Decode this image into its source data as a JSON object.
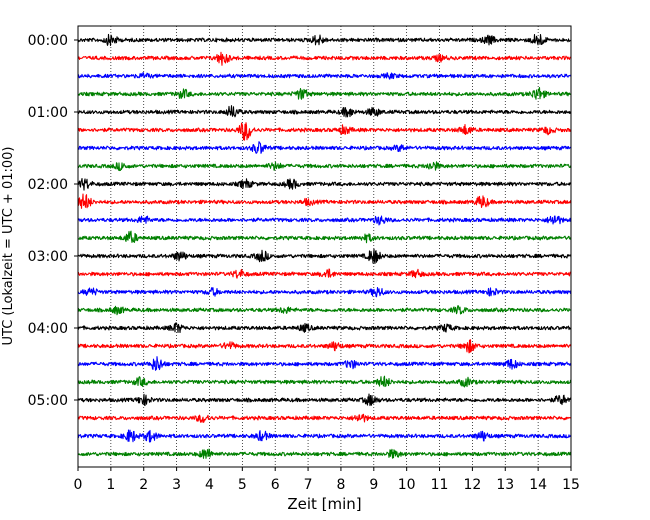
{
  "chart_data": {
    "type": "line",
    "title": "",
    "xlabel": "Zeit  [min]",
    "ylabel": "UTC (Lokalzeit = UTC + 01:00)",
    "xlim": [
      0,
      15
    ],
    "x_ticks": [
      "0",
      "1",
      "2",
      "3",
      "4",
      "5",
      "6",
      "7",
      "8",
      "9",
      "10",
      "11",
      "12",
      "13",
      "14",
      "15"
    ],
    "y_ticks": [
      "00:00",
      "01:00",
      "02:00",
      "03:00",
      "04:00",
      "05:00"
    ],
    "grid": "vertical dotted",
    "trace_interval_minutes": 15,
    "series_colors": [
      "#000000",
      "#ff0000",
      "#0000ff",
      "#008000"
    ],
    "traces": [
      {
        "start": "00:00",
        "bursts": [
          {
            "t": 1.0,
            "a": 0.8
          },
          {
            "t": 7.3,
            "a": 0.7
          },
          {
            "t": 12.5,
            "a": 0.6
          },
          {
            "t": 14.0,
            "a": 1.0
          }
        ]
      },
      {
        "start": "00:15",
        "bursts": [
          {
            "t": 4.4,
            "a": 1.0
          },
          {
            "t": 11.0,
            "a": 0.4
          }
        ]
      },
      {
        "start": "00:30",
        "bursts": [
          {
            "t": 2.0,
            "a": 0.3
          },
          {
            "t": 9.5,
            "a": 0.3
          }
        ]
      },
      {
        "start": "00:45",
        "bursts": [
          {
            "t": 3.2,
            "a": 0.6
          },
          {
            "t": 6.8,
            "a": 0.8
          },
          {
            "t": 14.0,
            "a": 1.0
          }
        ]
      },
      {
        "start": "01:00",
        "bursts": [
          {
            "t": 4.7,
            "a": 0.9
          },
          {
            "t": 8.2,
            "a": 0.7
          },
          {
            "t": 9.0,
            "a": 0.6
          }
        ]
      },
      {
        "start": "01:15",
        "bursts": [
          {
            "t": 5.1,
            "a": 1.6
          },
          {
            "t": 8.1,
            "a": 0.6
          },
          {
            "t": 11.8,
            "a": 0.7
          },
          {
            "t": 14.3,
            "a": 0.5
          }
        ]
      },
      {
        "start": "01:30",
        "bursts": [
          {
            "t": 5.5,
            "a": 0.9
          },
          {
            "t": 9.8,
            "a": 0.4
          }
        ]
      },
      {
        "start": "01:45",
        "bursts": [
          {
            "t": 1.3,
            "a": 0.5
          },
          {
            "t": 6.0,
            "a": 0.5
          },
          {
            "t": 10.8,
            "a": 0.6
          }
        ]
      },
      {
        "start": "02:00",
        "bursts": [
          {
            "t": 0.2,
            "a": 0.8
          },
          {
            "t": 5.1,
            "a": 0.6
          },
          {
            "t": 6.5,
            "a": 0.7
          }
        ]
      },
      {
        "start": "02:15",
        "bursts": [
          {
            "t": 0.2,
            "a": 1.2
          },
          {
            "t": 7.0,
            "a": 0.4
          },
          {
            "t": 12.3,
            "a": 0.9
          }
        ]
      },
      {
        "start": "02:30",
        "bursts": [
          {
            "t": 2.0,
            "a": 0.5
          },
          {
            "t": 9.2,
            "a": 0.6
          },
          {
            "t": 14.5,
            "a": 0.8
          }
        ]
      },
      {
        "start": "02:45",
        "bursts": [
          {
            "t": 1.6,
            "a": 0.9
          },
          {
            "t": 8.8,
            "a": 0.5
          }
        ]
      },
      {
        "start": "03:00",
        "bursts": [
          {
            "t": 3.1,
            "a": 0.7
          },
          {
            "t": 5.6,
            "a": 0.8
          },
          {
            "t": 9.0,
            "a": 1.1
          }
        ]
      },
      {
        "start": "03:15",
        "bursts": [
          {
            "t": 4.9,
            "a": 0.6
          },
          {
            "t": 7.6,
            "a": 0.6
          },
          {
            "t": 10.3,
            "a": 0.5
          }
        ]
      },
      {
        "start": "03:30",
        "bursts": [
          {
            "t": 0.4,
            "a": 0.5
          },
          {
            "t": 4.1,
            "a": 0.5
          },
          {
            "t": 9.1,
            "a": 0.7
          },
          {
            "t": 12.6,
            "a": 0.5
          }
        ]
      },
      {
        "start": "03:45",
        "bursts": [
          {
            "t": 1.2,
            "a": 0.5
          },
          {
            "t": 6.3,
            "a": 0.4
          },
          {
            "t": 11.6,
            "a": 0.5
          }
        ]
      },
      {
        "start": "04:00",
        "bursts": [
          {
            "t": 3.0,
            "a": 0.7
          },
          {
            "t": 6.9,
            "a": 0.5
          },
          {
            "t": 11.2,
            "a": 0.5
          }
        ]
      },
      {
        "start": "04:15",
        "bursts": [
          {
            "t": 4.6,
            "a": 0.5
          },
          {
            "t": 7.8,
            "a": 0.6
          },
          {
            "t": 11.9,
            "a": 0.9
          }
        ]
      },
      {
        "start": "04:30",
        "bursts": [
          {
            "t": 2.4,
            "a": 1.1
          },
          {
            "t": 8.3,
            "a": 0.6
          },
          {
            "t": 13.2,
            "a": 0.7
          }
        ]
      },
      {
        "start": "04:45",
        "bursts": [
          {
            "t": 1.9,
            "a": 0.6
          },
          {
            "t": 9.3,
            "a": 0.8
          },
          {
            "t": 11.8,
            "a": 0.6
          }
        ]
      },
      {
        "start": "05:00",
        "bursts": [
          {
            "t": 2.0,
            "a": 0.7
          },
          {
            "t": 8.9,
            "a": 0.8
          },
          {
            "t": 14.7,
            "a": 0.7
          }
        ]
      },
      {
        "start": "05:15",
        "bursts": [
          {
            "t": 3.8,
            "a": 0.6
          },
          {
            "t": 8.6,
            "a": 0.6
          }
        ]
      },
      {
        "start": "05:30",
        "bursts": [
          {
            "t": 1.6,
            "a": 0.9
          },
          {
            "t": 2.2,
            "a": 0.8
          },
          {
            "t": 5.6,
            "a": 0.7
          },
          {
            "t": 12.3,
            "a": 0.7
          }
        ]
      },
      {
        "start": "05:45",
        "bursts": [
          {
            "t": 3.9,
            "a": 0.8
          },
          {
            "t": 9.6,
            "a": 0.6
          }
        ]
      }
    ]
  }
}
